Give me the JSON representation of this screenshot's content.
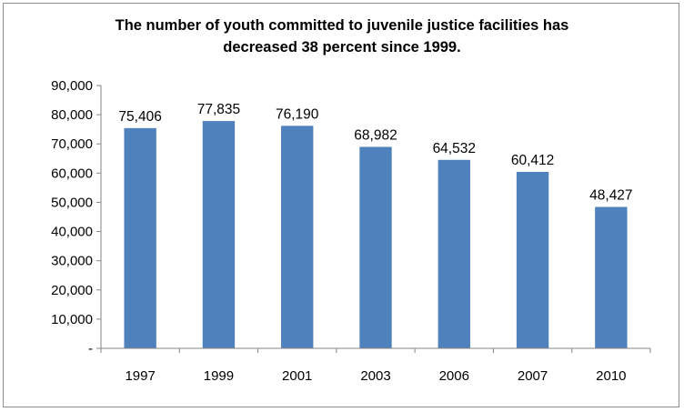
{
  "chart_data": {
    "type": "bar",
    "title_lines": [
      "The number of youth committed to juvenile justice facilities has",
      "decreased 38 percent since 1999."
    ],
    "categories": [
      "1997",
      "1999",
      "2001",
      "2003",
      "2006",
      "2007",
      "2010"
    ],
    "values": [
      75406,
      77835,
      76190,
      68982,
      64532,
      60412,
      48427
    ],
    "data_labels": [
      "75,406",
      "77,835",
      "76,190",
      "68,982",
      "64,532",
      "60,412",
      "48,427"
    ],
    "y_tick_labels": [
      "-",
      "10,000",
      "20,000",
      "30,000",
      "40,000",
      "50,000",
      "60,000",
      "70,000",
      "80,000",
      "90,000"
    ],
    "y_tick_values": [
      0,
      10000,
      20000,
      30000,
      40000,
      50000,
      60000,
      70000,
      80000,
      90000
    ],
    "ylim": [
      0,
      90000
    ],
    "xlabel": "",
    "ylabel": "",
    "grid": false,
    "legend": "none",
    "bar_color": "#4f81bd"
  }
}
